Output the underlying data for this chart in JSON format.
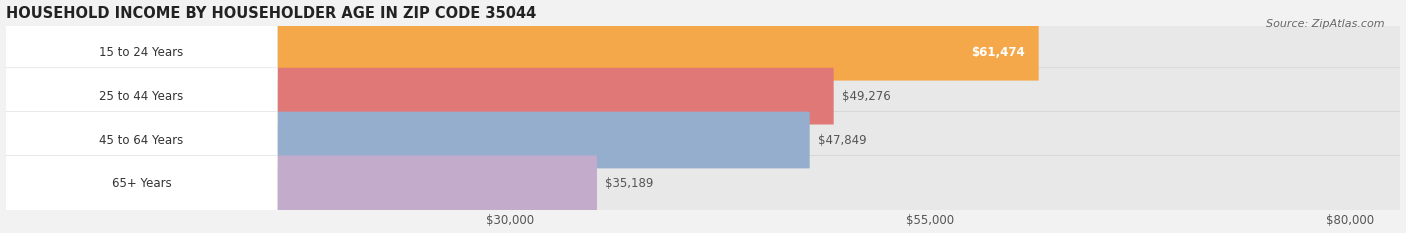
{
  "title": "HOUSEHOLD INCOME BY HOUSEHOLDER AGE IN ZIP CODE 35044",
  "source": "Source: ZipAtlas.com",
  "categories": [
    "15 to 24 Years",
    "25 to 44 Years",
    "45 to 64 Years",
    "65+ Years"
  ],
  "values": [
    61474,
    49276,
    47849,
    35189
  ],
  "bar_colors": [
    "#F5A84A",
    "#E07878",
    "#96AECE",
    "#C3ABCC"
  ],
  "value_labels": [
    "$61,474",
    "$49,276",
    "$47,849",
    "$35,189"
  ],
  "value_label_inside": [
    true,
    false,
    false,
    false
  ],
  "x_ticks": [
    30000,
    55000,
    80000
  ],
  "x_tick_labels": [
    "$30,000",
    "$55,000",
    "$80,000"
  ],
  "x_min": 0,
  "x_max": 83000,
  "background_color": "#f2f2f2",
  "bar_bg_color": "#e8e8e8",
  "white_label_bg": "#ffffff",
  "title_fontsize": 10.5,
  "source_fontsize": 8,
  "label_fontsize": 8.5,
  "tick_fontsize": 8.5,
  "bar_height": 0.68,
  "bar_gap": 0.05
}
